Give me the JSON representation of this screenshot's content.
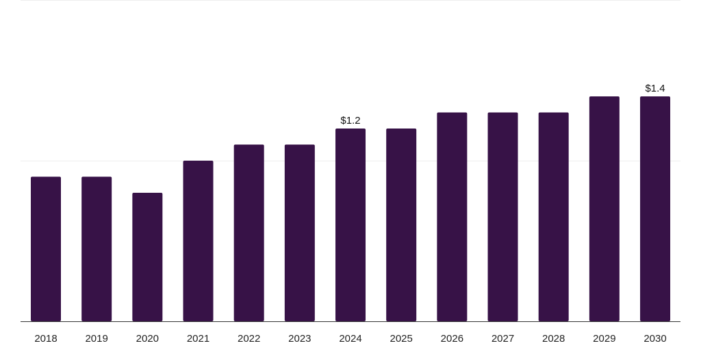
{
  "chart_data": {
    "type": "bar",
    "categories": [
      "2018",
      "2019",
      "2020",
      "2021",
      "2022",
      "2023",
      "2024",
      "2025",
      "2026",
      "2027",
      "2028",
      "2029",
      "2030"
    ],
    "values": [
      0.9,
      0.9,
      0.8,
      1.0,
      1.1,
      1.1,
      1.2,
      1.2,
      1.3,
      1.3,
      1.3,
      1.4,
      1.4
    ],
    "data_labels": [
      {
        "category": "2024",
        "text": "$1.2"
      },
      {
        "category": "2030",
        "text": "$1.4"
      }
    ],
    "title": "",
    "xlabel": "",
    "ylabel": "",
    "ylim": [
      0,
      2
    ],
    "grid": true,
    "bar_color": "#371247"
  }
}
